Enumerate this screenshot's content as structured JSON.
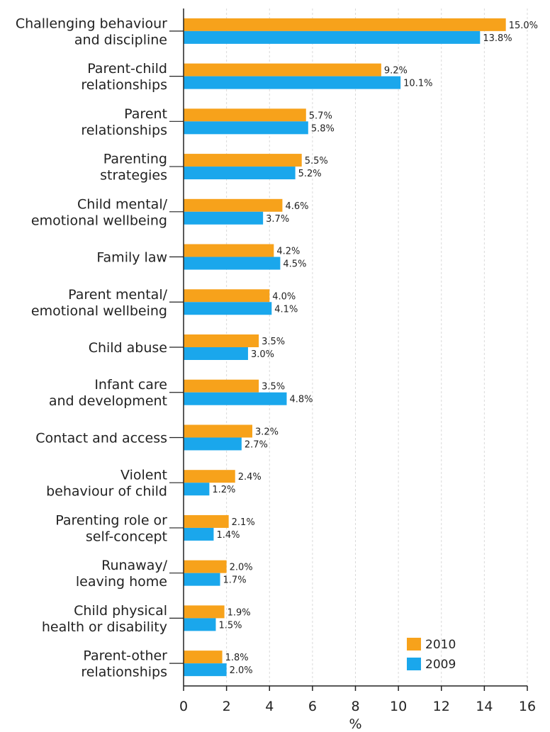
{
  "chart_data": {
    "type": "bar",
    "orientation": "horizontal",
    "categories": [
      [
        "Challenging behaviour",
        "and discipline"
      ],
      [
        "Parent-child",
        "relationships"
      ],
      [
        "Parent",
        "relationships"
      ],
      [
        "Parenting",
        "strategies"
      ],
      [
        "Child mental/",
        "emotional wellbeing"
      ],
      [
        "Family law"
      ],
      [
        "Parent mental/",
        "emotional wellbeing"
      ],
      [
        "Child abuse"
      ],
      [
        "Infant care",
        "and development"
      ],
      [
        "Contact and access"
      ],
      [
        "Violent",
        "behaviour of child"
      ],
      [
        "Parenting role or",
        "self-concept"
      ],
      [
        "Runaway/",
        "leaving home"
      ],
      [
        "Child physical",
        "health or disability"
      ],
      [
        "Parent-other",
        "relationships"
      ]
    ],
    "series": [
      {
        "name": "2010",
        "color": "#f7a21b",
        "values": [
          15.0,
          9.2,
          5.7,
          5.5,
          4.6,
          4.2,
          4.0,
          3.5,
          3.5,
          3.2,
          2.4,
          2.1,
          2.0,
          1.9,
          1.8
        ],
        "labels": [
          "15.0%",
          "9.2%",
          "5.7%",
          "5.5%",
          "4.6%",
          "4.2%",
          "4.0%",
          "3.5%",
          "3.5%",
          "3.2%",
          "2.4%",
          "2.1%",
          "2.0%",
          "1.9%",
          "1.8%"
        ]
      },
      {
        "name": "2009",
        "color": "#1aa7ec",
        "values": [
          13.8,
          10.1,
          5.8,
          5.2,
          3.7,
          4.5,
          4.1,
          3.0,
          4.8,
          2.7,
          1.2,
          1.4,
          1.7,
          1.5,
          2.0
        ],
        "labels": [
          "13.8%",
          "10.1%",
          "5.8%",
          "5.2%",
          "3.7%",
          "4.5%",
          "4.1%",
          "3.0%",
          "4.8%",
          "2.7%",
          "1.2%",
          "1.4%",
          "1.7%",
          "1.5%",
          "2.0%"
        ]
      }
    ],
    "xlabel": "%",
    "xlim": [
      0,
      16
    ],
    "xticks": [
      0,
      2,
      4,
      6,
      8,
      10,
      12,
      14,
      16
    ],
    "grid": true,
    "legend_position": "bottom-right"
  }
}
